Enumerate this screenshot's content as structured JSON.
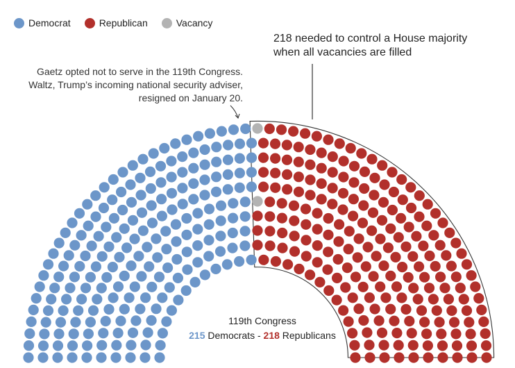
{
  "legend": [
    {
      "label": "Democrat",
      "color": "#6c96c9"
    },
    {
      "label": "Republican",
      "color": "#b2302b"
    },
    {
      "label": "Vacancy",
      "color": "#b3b3b3"
    }
  ],
  "annotations": {
    "majority": "218 needed to control a House majority when all vacancies are filled",
    "vacancy": "Gaetz opted not to serve in the 119th Congress. Waltz, Trump’s incoming national security adviser, resigned on January 20."
  },
  "summary": {
    "title": "119th Congress",
    "dem_count": "215",
    "dem_label": "Democrats",
    "separator": "-",
    "rep_count": "218",
    "rep_label": "Republicans"
  },
  "chart_data": {
    "type": "parliament",
    "total_seats": 435,
    "series": [
      {
        "name": "Democrat",
        "value": 215,
        "color": "#6c96c9"
      },
      {
        "name": "Vacancy",
        "value": 2,
        "color": "#b3b3b3"
      },
      {
        "name": "Republican",
        "value": 218,
        "color": "#b2302b"
      }
    ],
    "majority_threshold": 218
  }
}
